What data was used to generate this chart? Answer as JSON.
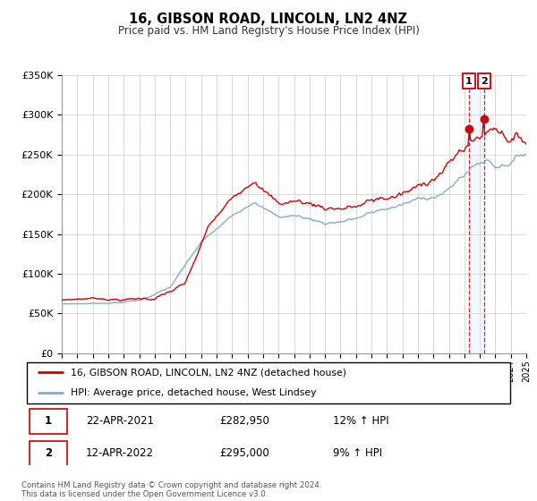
{
  "title": "16, GIBSON ROAD, LINCOLN, LN2 4NZ",
  "subtitle": "Price paid vs. HM Land Registry's House Price Index (HPI)",
  "legend_label_1": "16, GIBSON ROAD, LINCOLN, LN2 4NZ (detached house)",
  "legend_label_2": "HPI: Average price, detached house, West Lindsey",
  "color_red": "#cc0000",
  "color_blue": "#88aacc",
  "vline_color": "#cc0000",
  "vfill_color": "#ddeeff",
  "point1_date": 2021.29,
  "point1_value": 282950,
  "point2_date": 2022.27,
  "point2_value": 295000,
  "footnote": "Contains HM Land Registry data © Crown copyright and database right 2024.\nThis data is licensed under the Open Government Licence v3.0.",
  "table_row1": [
    "1",
    "22-APR-2021",
    "£282,950",
    "12% ↑ HPI"
  ],
  "table_row2": [
    "2",
    "12-APR-2022",
    "£295,000",
    "9% ↑ HPI"
  ],
  "xmin": 1995,
  "xmax": 2025,
  "ymin": 0,
  "ymax": 350000,
  "yticks": [
    0,
    50000,
    100000,
    150000,
    200000,
    250000,
    300000,
    350000
  ],
  "ytick_labels": [
    "£0",
    "£50K",
    "£100K",
    "£150K",
    "£200K",
    "£250K",
    "£300K",
    "£350K"
  ]
}
